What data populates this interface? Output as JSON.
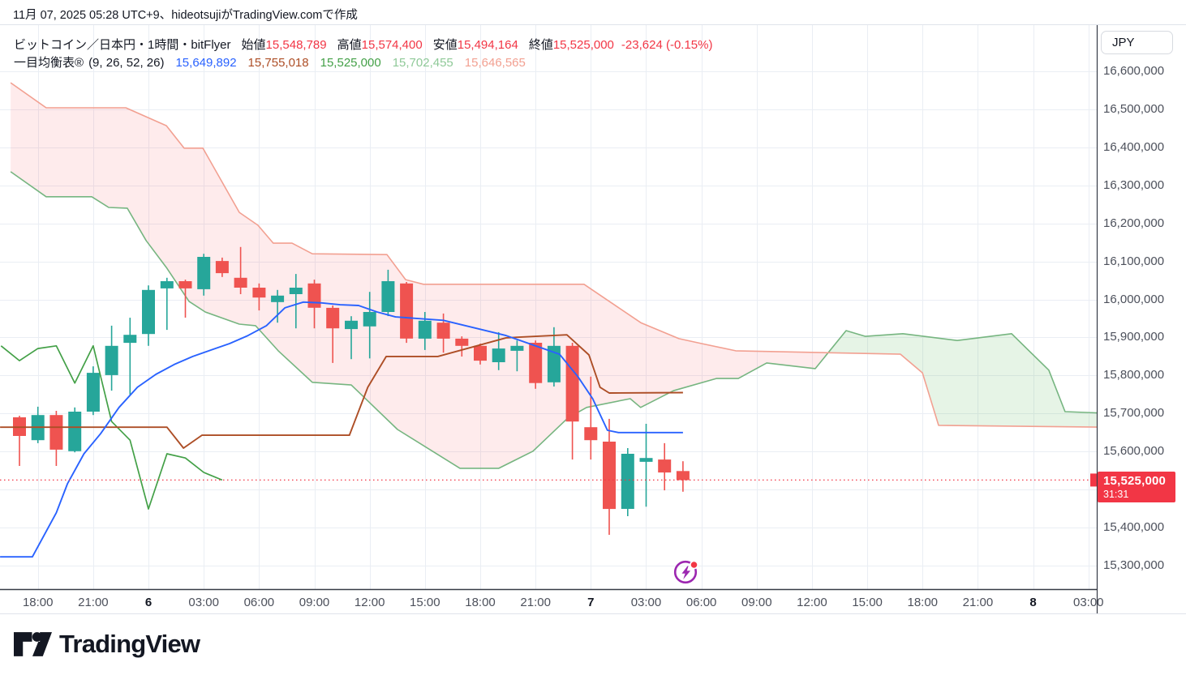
{
  "header": {
    "title": "11月 07, 2025 05:28 UTC+9、hideotsujiがTradingView.comで作成"
  },
  "legend": {
    "symbol": "ビットコイン／日本円・1時間・bitFlyer",
    "ohlc": [
      {
        "label": "始値",
        "value": "15,548,789"
      },
      {
        "label": "高値",
        "value": "15,574,400"
      },
      {
        "label": "安値",
        "value": "15,494,164"
      },
      {
        "label": "終値",
        "value": "15,525,000"
      }
    ],
    "change": "-23,624 (-0.15%)",
    "indicator": {
      "name": "一目均衡表®",
      "params": "(9, 26, 52, 26)",
      "values": [
        {
          "value": "15,649,892",
          "color": "#2962ff"
        },
        {
          "value": "15,755,018",
          "color": "#ad4e26"
        },
        {
          "value": "15,525,000",
          "color": "#43a047"
        },
        {
          "value": "15,702,455",
          "color": "#8fc998"
        },
        {
          "value": "15,646,565",
          "color": "#f2a091"
        }
      ]
    }
  },
  "price_axis": {
    "currency": "JPY",
    "ticks": [
      16600000,
      16500000,
      16400000,
      16300000,
      16200000,
      16100000,
      16000000,
      15900000,
      15800000,
      15700000,
      15600000,
      15500000,
      15400000,
      15300000
    ],
    "last_price": {
      "text": "15,525,000",
      "countdown": "31:31"
    }
  },
  "time_axis": {
    "ticks": [
      {
        "t": 1,
        "label": "18:00"
      },
      {
        "t": 4,
        "label": "21:00"
      },
      {
        "t": 7,
        "label": "6",
        "bold": true
      },
      {
        "t": 10,
        "label": "03:00"
      },
      {
        "t": 13,
        "label": "06:00"
      },
      {
        "t": 16,
        "label": "09:00"
      },
      {
        "t": 19,
        "label": "12:00"
      },
      {
        "t": 22,
        "label": "15:00"
      },
      {
        "t": 25,
        "label": "18:00"
      },
      {
        "t": 28,
        "label": "21:00"
      },
      {
        "t": 31,
        "label": "7",
        "bold": true
      },
      {
        "t": 34,
        "label": "03:00"
      },
      {
        "t": 37,
        "label": "06:00"
      },
      {
        "t": 40,
        "label": "09:00"
      },
      {
        "t": 43,
        "label": "12:00"
      },
      {
        "t": 46,
        "label": "15:00"
      },
      {
        "t": 49,
        "label": "18:00"
      },
      {
        "t": 52,
        "label": "21:00"
      },
      {
        "t": 55,
        "label": "8",
        "bold": true
      },
      {
        "t": 58,
        "label": "03:00"
      }
    ]
  },
  "footer": {
    "logo_text": "TradingView"
  },
  "chart_data": {
    "type": "candlestick+ichimoku",
    "title": "ビットコイン／日本円・1時間・bitFlyer",
    "interval": "1時間",
    "ylabel": "JPY",
    "ylim": [
      15300000,
      16600000
    ],
    "y_grid_step": 100000,
    "last_price": 15525000,
    "candles": [
      [
        15690000,
        15694000,
        15562000,
        15641000
      ],
      [
        15630000,
        15718000,
        15622000,
        15696000
      ],
      [
        15696000,
        15707000,
        15562000,
        15605000
      ],
      [
        15601000,
        15716000,
        15598000,
        15705000
      ],
      [
        15705000,
        15824000,
        15696000,
        15807000
      ],
      [
        15801000,
        15931000,
        15760000,
        15878000
      ],
      [
        15886000,
        15952000,
        15750000,
        15907000
      ],
      [
        15909000,
        16037000,
        15878000,
        16025000
      ],
      [
        16029000,
        16057000,
        15920000,
        16048000
      ],
      [
        16048000,
        16052000,
        15952000,
        16029000
      ],
      [
        16027000,
        16120000,
        16010000,
        16112000
      ],
      [
        16101000,
        16110000,
        16059000,
        16069000
      ],
      [
        16057000,
        16138000,
        16014000,
        16031000
      ],
      [
        16031000,
        16042000,
        15971000,
        16005000
      ],
      [
        15993000,
        16025000,
        15939000,
        16010000
      ],
      [
        16014000,
        16067000,
        15924000,
        16031000
      ],
      [
        16042000,
        16052000,
        15924000,
        15978000
      ],
      [
        15978000,
        15984000,
        15833000,
        15924000
      ],
      [
        15922000,
        15956000,
        15843000,
        15944000
      ],
      [
        15929000,
        16020000,
        15845000,
        15967000
      ],
      [
        15967000,
        16078000,
        15956000,
        16048000
      ],
      [
        16042000,
        16046000,
        15886000,
        15897000
      ],
      [
        15897000,
        15967000,
        15867000,
        15944000
      ],
      [
        15939000,
        15963000,
        15860000,
        15897000
      ],
      [
        15897000,
        15903000,
        15850000,
        15878000
      ],
      [
        15878000,
        15884000,
        15829000,
        15839000
      ],
      [
        15835000,
        15914000,
        15814000,
        15871000
      ],
      [
        15865000,
        15892000,
        15811000,
        15878000
      ],
      [
        15886000,
        15892000,
        15765000,
        15780000
      ],
      [
        15782000,
        15927000,
        15771000,
        15878000
      ],
      [
        15878000,
        15886000,
        15579000,
        15679000
      ],
      [
        15664000,
        15797000,
        15579000,
        15630000
      ],
      [
        15626000,
        15686000,
        15381000,
        15449000
      ],
      [
        15449000,
        15609000,
        15430000,
        15594000
      ],
      [
        15573000,
        15673000,
        15455000,
        15583000
      ],
      [
        15579000,
        15622000,
        15498000,
        15545000
      ],
      [
        15548789,
        15574400,
        15494164,
        15525000
      ]
    ],
    "ichimoku": {
      "tenkan": [
        [
          -1.05,
          15323000
        ],
        [
          0.7,
          15323000
        ],
        [
          2,
          15439000
        ],
        [
          2.6,
          15515000
        ],
        [
          3.5,
          15594000
        ],
        [
          4.4,
          15647000
        ],
        [
          5.4,
          15716000
        ],
        [
          6.4,
          15769000
        ],
        [
          7.4,
          15803000
        ],
        [
          8.4,
          15829000
        ],
        [
          9.4,
          15850000
        ],
        [
          10.4,
          15867000
        ],
        [
          11.4,
          15884000
        ],
        [
          12.4,
          15905000
        ],
        [
          13.4,
          15931000
        ],
        [
          14.4,
          15978000
        ],
        [
          15.4,
          15993000
        ],
        [
          16.4,
          15991000
        ],
        [
          17.4,
          15986000
        ],
        [
          18.4,
          15984000
        ],
        [
          19.4,
          15967000
        ],
        [
          20.4,
          15954000
        ],
        [
          23,
          15945000
        ],
        [
          26.4,
          15905000
        ],
        [
          28,
          15878000
        ],
        [
          29.3,
          15856000
        ],
        [
          30.3,
          15797000
        ],
        [
          31.1,
          15739000
        ],
        [
          31.9,
          15656000
        ],
        [
          32.5,
          15650000
        ],
        [
          36,
          15649892
        ]
      ],
      "kijun": [
        [
          -1.05,
          15664000
        ],
        [
          8,
          15664000
        ],
        [
          8.9,
          15609000
        ],
        [
          9.9,
          15643000
        ],
        [
          17.9,
          15643000
        ],
        [
          18.9,
          15769000
        ],
        [
          19.9,
          15850000
        ],
        [
          22.7,
          15850000
        ],
        [
          26.4,
          15899000
        ],
        [
          28,
          15903000
        ],
        [
          29.7,
          15907000
        ],
        [
          30.9,
          15854000
        ],
        [
          31.5,
          15769000
        ],
        [
          32,
          15754000
        ],
        [
          36,
          15755018
        ]
      ],
      "chikou": [
        [
          -1,
          15878000
        ],
        [
          0,
          15839000
        ],
        [
          1,
          15871000
        ],
        [
          2,
          15878000
        ],
        [
          3,
          15780000
        ],
        [
          4,
          15878000
        ],
        [
          5,
          15679000
        ],
        [
          6,
          15630000
        ],
        [
          7,
          15449000
        ],
        [
          8,
          15594000
        ],
        [
          9,
          15583000
        ],
        [
          10,
          15545000
        ],
        [
          11,
          15525000
        ]
      ],
      "senkou_a": [
        [
          -0.48,
          16336000
        ],
        [
          1.45,
          16270000
        ],
        [
          3.92,
          16270000
        ],
        [
          4.84,
          16242000
        ],
        [
          5.85,
          16240000
        ],
        [
          6.87,
          16155000
        ],
        [
          7.97,
          16084000
        ],
        [
          9.2,
          15995000
        ],
        [
          10.08,
          15967000
        ],
        [
          11.93,
          15935000
        ],
        [
          12.81,
          15931000
        ],
        [
          14.04,
          15865000
        ],
        [
          15.89,
          15782000
        ],
        [
          18,
          15775000
        ],
        [
          20.51,
          15658000
        ],
        [
          23.9,
          15556000
        ],
        [
          26.01,
          15556000
        ],
        [
          27.86,
          15601000
        ],
        [
          29.75,
          15688000
        ],
        [
          30.77,
          15716000
        ],
        [
          33.14,
          15739000
        ],
        [
          33.7,
          15716000
        ],
        [
          35.48,
          15760000
        ],
        [
          37.81,
          15792000
        ],
        [
          39,
          15792000
        ],
        [
          40.54,
          15833000
        ],
        [
          43.18,
          15818000
        ],
        [
          44.85,
          15918000
        ],
        [
          45.9,
          15903000
        ],
        [
          47.93,
          15910000
        ],
        [
          50.88,
          15892000
        ],
        [
          53.83,
          15910000
        ],
        [
          55.85,
          15814000
        ],
        [
          56.73,
          15705000
        ],
        [
          58.8,
          15701000
        ]
      ],
      "senkou_b": [
        [
          -0.48,
          16570000
        ],
        [
          1.45,
          16504000
        ],
        [
          5.77,
          16504000
        ],
        [
          7.97,
          16457000
        ],
        [
          8.93,
          16398000
        ],
        [
          9.95,
          16398000
        ],
        [
          11.93,
          16229000
        ],
        [
          12.94,
          16195000
        ],
        [
          13.77,
          16148000
        ],
        [
          14.79,
          16148000
        ],
        [
          15.89,
          16120000
        ],
        [
          19.94,
          16118000
        ],
        [
          20.95,
          16052000
        ],
        [
          21.92,
          16040000
        ],
        [
          30.63,
          16040000
        ],
        [
          33.71,
          15939000
        ],
        [
          35.78,
          15897000
        ],
        [
          37.01,
          15884000
        ],
        [
          38.86,
          15865000
        ],
        [
          47.8,
          15856000
        ],
        [
          48.99,
          15807000
        ],
        [
          49.87,
          15669000
        ],
        [
          58.8,
          15664000
        ]
      ]
    },
    "colors": {
      "up": "#26a69a",
      "down": "#ef5350",
      "tenkan": "#2962ff",
      "kijun": "#ad4e26",
      "chikou": "#43a047",
      "senkou_a": "#76b580",
      "senkou_b": "#f2a091",
      "cloud_bear": "rgba(242,54,69,0.10)",
      "cloud_bull": "rgba(76,175,80,0.14)",
      "price_line": "#f23645",
      "grid": "#eaeef4",
      "axis_border": "#363a45",
      "soft_border": "#e0e3eb"
    }
  }
}
